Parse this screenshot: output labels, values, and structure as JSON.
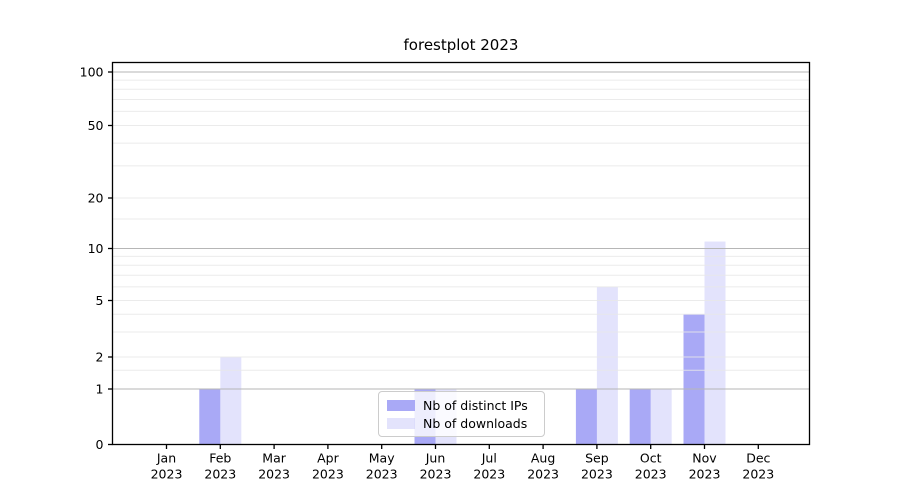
{
  "chart_data": {
    "type": "bar",
    "title": "forestplot 2023",
    "x_tick_labels": [
      [
        "Jan",
        "2023"
      ],
      [
        "Feb",
        "2023"
      ],
      [
        "Mar",
        "2023"
      ],
      [
        "Apr",
        "2023"
      ],
      [
        "May",
        "2023"
      ],
      [
        "Jun",
        "2023"
      ],
      [
        "Jul",
        "2023"
      ],
      [
        "Aug",
        "2023"
      ],
      [
        "Sep",
        "2023"
      ],
      [
        "Oct",
        "2023"
      ],
      [
        "Nov",
        "2023"
      ],
      [
        "Dec",
        "2023"
      ]
    ],
    "series": [
      {
        "name": "Nb of distinct IPs",
        "color": "#a9a9f6",
        "fill_opacity": 1,
        "values": [
          0,
          1,
          0,
          0,
          0,
          1,
          0,
          0,
          1,
          1,
          4,
          0
        ]
      },
      {
        "name": "Nb of downloads",
        "color": "#a9a9f6",
        "fill_opacity": 0.33,
        "values": [
          0,
          2,
          0,
          0,
          0,
          1,
          0,
          0,
          6,
          1,
          11,
          0
        ]
      }
    ],
    "y_axis": {
      "tick_labels": [
        "0",
        "1",
        "2",
        "5",
        "10",
        "20",
        "50",
        "100"
      ],
      "tick_values": [
        0,
        1,
        2,
        5,
        10,
        20,
        50,
        100
      ],
      "minor_grid_values": [
        1.5,
        3,
        4,
        6,
        7,
        8,
        9,
        15,
        30,
        40,
        60,
        70,
        80,
        90
      ],
      "major_grid_values": [
        1,
        10,
        100
      ],
      "scale": "log-like",
      "range": [
        0,
        113
      ]
    },
    "legend": {
      "position": "lower center, inside plot"
    },
    "grid": true,
    "colors": {
      "bar_dark": "#a9a9f6",
      "bar_light": "#dcdcf9",
      "major_grid": "#b6b6b6",
      "minor_grid": "#e7e7e7",
      "axis": "#000000"
    }
  }
}
